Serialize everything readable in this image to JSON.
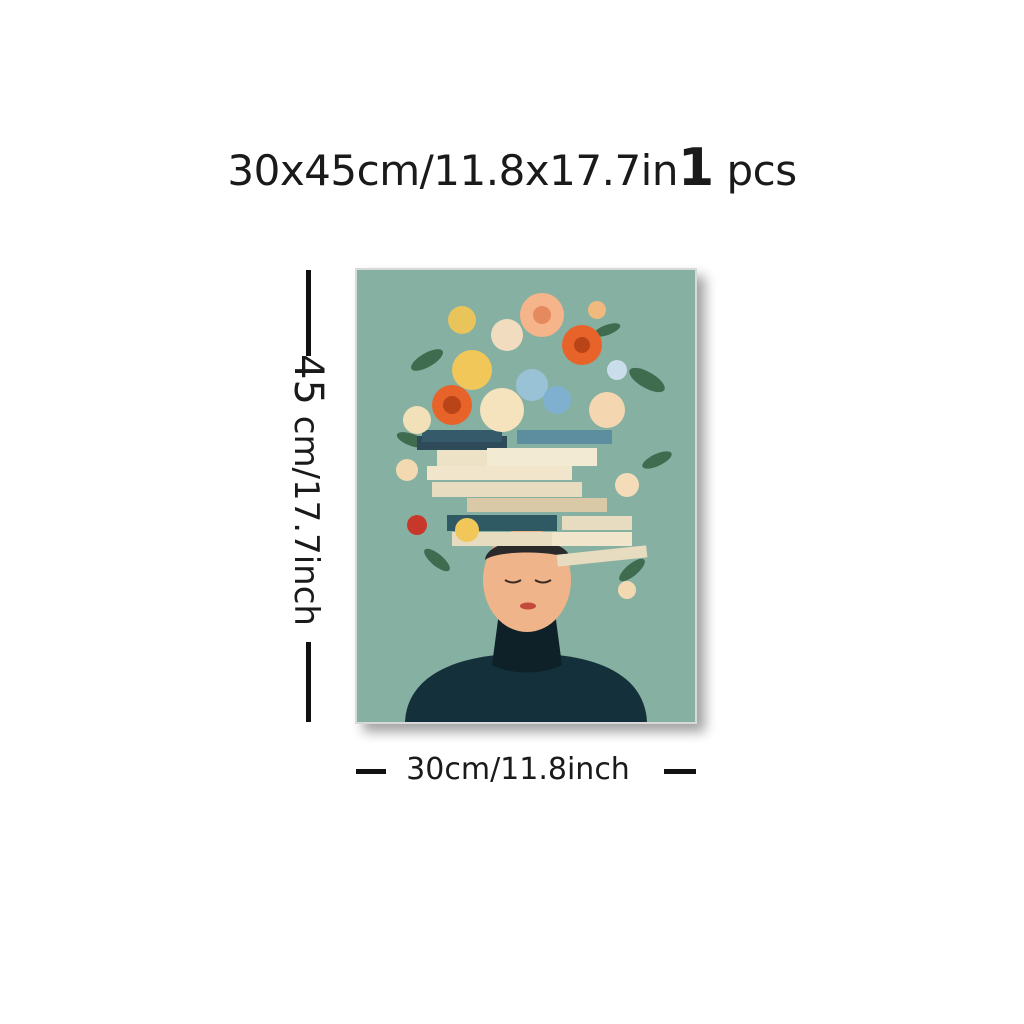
{
  "headline": {
    "size": "30x45cm/11.8x17.7in",
    "quantity": "1",
    "unit": " pcs"
  },
  "dimensions": {
    "height_number": "45",
    "height_rest": " cm/17.7inch",
    "width_label": "30cm/11.8inch"
  },
  "artwork": {
    "background_color": "#86b0a2"
  },
  "colors": {
    "accent_orange": "#e8632a",
    "dark_navy": "#14303a",
    "text": "#1a1a1a"
  }
}
